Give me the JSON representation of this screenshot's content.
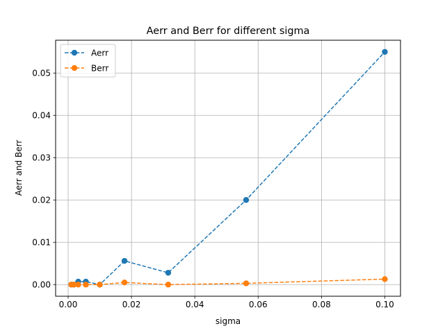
{
  "chart_data": {
    "type": "line",
    "title": "Aerr and Berr for different sigma",
    "xlabel": "sigma",
    "ylabel": "Aerr and Berr",
    "xlim": [
      -0.00395,
      0.10495
    ],
    "ylim": [
      -0.00275,
      0.05775
    ],
    "x_ticks": [
      0.0,
      0.02,
      0.04,
      0.06,
      0.08,
      0.1
    ],
    "x_tick_labels": [
      "0.00",
      "0.02",
      "0.04",
      "0.06",
      "0.08",
      "0.10"
    ],
    "y_ticks": [
      0.0,
      0.01,
      0.02,
      0.03,
      0.04,
      0.05
    ],
    "y_tick_labels": [
      "0.00",
      "0.01",
      "0.02",
      "0.03",
      "0.04",
      "0.05"
    ],
    "grid": true,
    "legend_position": "top-left",
    "series": [
      {
        "name": "Aerr",
        "color": "#1f77b4",
        "linestyle": "dashed",
        "marker": "circle",
        "x": [
          0.001,
          0.0018,
          0.0032,
          0.0056,
          0.01,
          0.0178,
          0.0316,
          0.0562,
          0.1
        ],
        "y": [
          0.0,
          0.0,
          0.0007,
          0.0007,
          0.0,
          0.0056,
          0.0028,
          0.02,
          0.055
        ]
      },
      {
        "name": "Berr",
        "color": "#ff7f0e",
        "linestyle": "dashed",
        "marker": "circle",
        "x": [
          0.001,
          0.0018,
          0.0032,
          0.0056,
          0.01,
          0.0178,
          0.0316,
          0.0562,
          0.1
        ],
        "y": [
          0.0,
          0.0,
          0.0,
          0.0,
          0.0,
          0.0005,
          0.0,
          0.0003,
          0.0013
        ]
      }
    ]
  }
}
